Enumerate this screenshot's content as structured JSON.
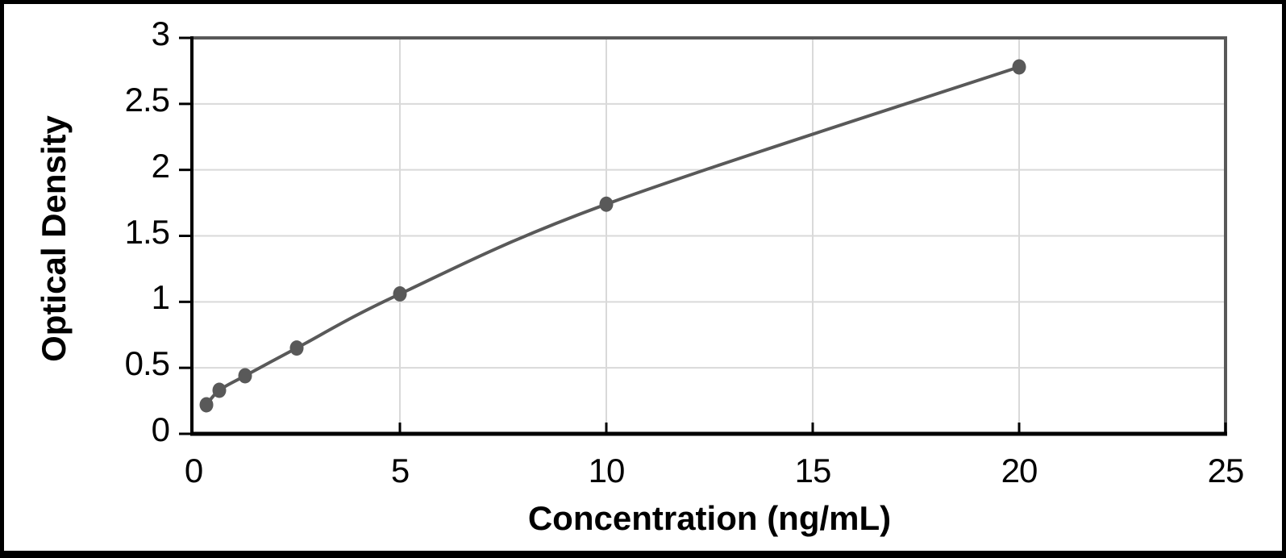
{
  "chart_data": {
    "type": "line",
    "title": "",
    "xlabel": "Concentration (ng/mL)",
    "ylabel": "Optical Density",
    "xlim": [
      0,
      25
    ],
    "ylim": [
      0,
      3
    ],
    "x_ticks": [
      0,
      5,
      10,
      15,
      20,
      25
    ],
    "y_ticks": [
      0,
      0.5,
      1,
      1.5,
      2,
      2.5,
      3
    ],
    "grid": true,
    "legend": false,
    "line_style": "smooth",
    "series": [
      {
        "name": "standard-curve",
        "x": [
          0.313,
          0.625,
          1.25,
          2.5,
          5,
          10,
          20
        ],
        "y": [
          0.22,
          0.33,
          0.44,
          0.65,
          1.06,
          1.74,
          2.78
        ]
      }
    ],
    "colors": {
      "line": "#595959",
      "marker": "#595959",
      "gridline": "#d9d9d9",
      "plot_border": "#595959",
      "axis_line": "#000000",
      "text": "#000000",
      "frame": "#000000",
      "background": "#ffffff"
    }
  }
}
